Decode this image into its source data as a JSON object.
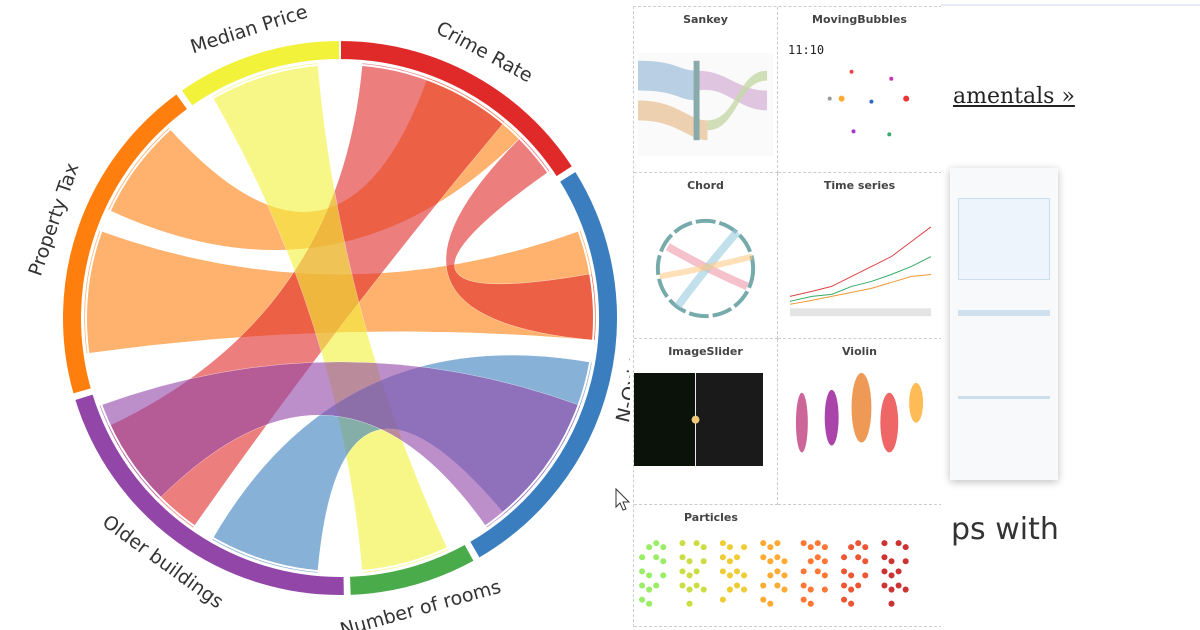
{
  "chord": {
    "labels": [
      "Median Price",
      "Crime Rate",
      "N-Oxid",
      "Number of rooms",
      "Older buildings",
      "Property Tax"
    ]
  },
  "gallery": {
    "items": [
      "Sankey",
      "MovingBubbles",
      "Chord",
      "Time series",
      "ImageSlider",
      "Violin",
      "Particles"
    ],
    "clock": "11:10"
  },
  "page": {
    "link": "amentals »",
    "heading": "ps with"
  }
}
